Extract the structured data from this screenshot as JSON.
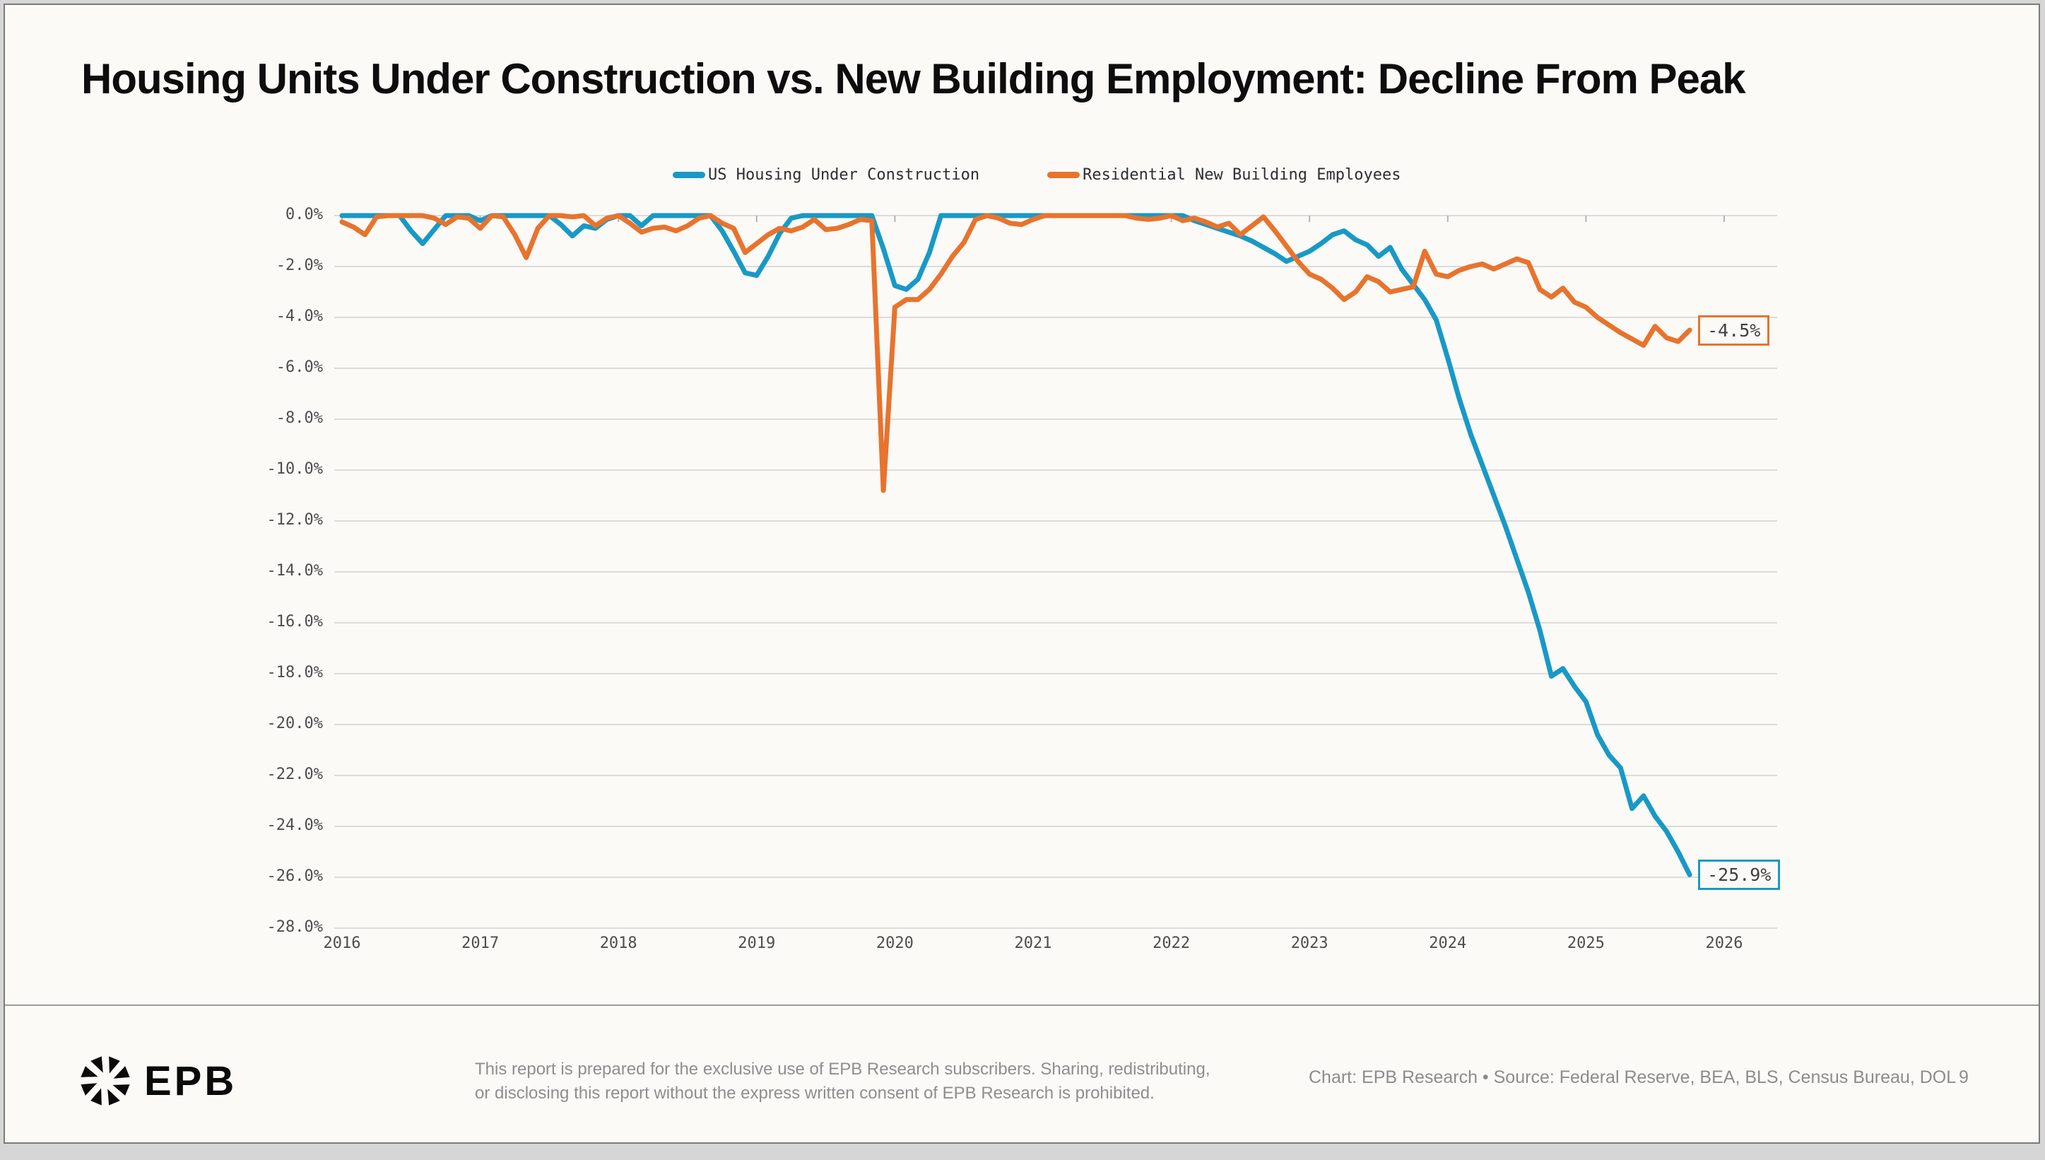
{
  "page": {
    "title": "Housing Units Under Construction vs. New Building Employment: Decline From Peak"
  },
  "colors": {
    "housing_line": "#1899c6",
    "employees_line": "#e8732d",
    "grid": "#dcdcda",
    "tick": "#b3b3b3",
    "card_bg": "#fbfaf7"
  },
  "legend": {
    "entries": [
      {
        "label": "US Housing Under Construction",
        "color": "#1899c6"
      },
      {
        "label": "Residential New Building Employees",
        "color": "#e8732d"
      }
    ]
  },
  "chart_data": {
    "type": "line",
    "title": "Housing Units Under Construction vs. New Building Employment: Decline From Peak",
    "xlabel": "",
    "ylabel": "",
    "xlim": [
      2016,
      2026
    ],
    "ylim": [
      -28,
      0
    ],
    "grid": true,
    "legend_position": "top-center",
    "x_ticks": [
      "2016",
      "2017",
      "2018",
      "2019",
      "2020",
      "2021",
      "2022",
      "2023",
      "2024",
      "2025",
      "2026"
    ],
    "y_ticks": [
      "0.0%",
      "-2.0%",
      "-4.0%",
      "-6.0%",
      "-8.0%",
      "-10.0%",
      "-12.0%",
      "-14.0%",
      "-16.0%",
      "-18.0%",
      "-20.0%",
      "-22.0%",
      "-24.0%",
      "-26.0%",
      "-28.0%"
    ],
    "frequency": "monthly",
    "start_year": 2016,
    "series": [
      {
        "name": "US Housing Under Construction",
        "color": "#1899c6",
        "end_label": "-25.9%",
        "values": [
          0,
          0,
          0,
          0,
          0,
          0,
          -0.6,
          -1.1,
          -0.55,
          0,
          0,
          0,
          -0.2,
          0,
          0,
          0,
          0,
          0,
          0,
          -0.35,
          -0.8,
          -0.4,
          -0.5,
          -0.15,
          0,
          0,
          -0.4,
          0,
          0,
          0,
          0,
          0,
          0,
          -0.6,
          -1.4,
          -2.25,
          -2.35,
          -1.6,
          -0.7,
          -0.1,
          0,
          0,
          0,
          0,
          0,
          0,
          0,
          -1.3,
          -2.75,
          -2.9,
          -2.5,
          -1.45,
          0,
          0,
          0,
          0,
          0,
          0,
          0,
          0,
          0,
          0,
          0,
          0,
          0,
          0,
          0,
          0,
          0,
          0,
          0,
          0,
          0,
          0,
          -0.2,
          -0.35,
          -0.5,
          -0.65,
          -0.8,
          -1.0,
          -1.25,
          -1.5,
          -1.8,
          -1.6,
          -1.4,
          -1.1,
          -0.75,
          -0.6,
          -0.95,
          -1.15,
          -1.6,
          -1.25,
          -2.1,
          -2.7,
          -3.3,
          -4.1,
          -5.6,
          -7.2,
          -8.6,
          -9.8,
          -11.0,
          -12.2,
          -13.5,
          -14.8,
          -16.3,
          -18.1,
          -17.8,
          -18.5,
          -19.1,
          -20.4,
          -21.2,
          -21.7,
          -23.3,
          -22.8,
          -23.6,
          -24.2,
          -25.0,
          -25.9
        ]
      },
      {
        "name": "Residential New Building Employees",
        "color": "#e8732d",
        "end_label": "-4.5%",
        "values": [
          -0.25,
          -0.45,
          -0.75,
          -0.05,
          0,
          0,
          0,
          0,
          -0.1,
          -0.35,
          -0.05,
          -0.1,
          -0.5,
          0,
          -0.05,
          -0.75,
          -1.65,
          -0.5,
          0,
          0,
          -0.05,
          0,
          -0.4,
          -0.1,
          0,
          -0.3,
          -0.65,
          -0.5,
          -0.45,
          -0.6,
          -0.4,
          -0.1,
          0,
          -0.3,
          -0.5,
          -1.45,
          -1.1,
          -0.75,
          -0.5,
          -0.6,
          -0.45,
          -0.15,
          -0.55,
          -0.5,
          -0.35,
          -0.15,
          -0.2,
          -10.8,
          -3.6,
          -3.3,
          -3.3,
          -2.9,
          -2.3,
          -1.6,
          -1.05,
          -0.15,
          0,
          -0.1,
          -0.3,
          -0.35,
          -0.15,
          0,
          0,
          0,
          0,
          0,
          0,
          0,
          0,
          -0.1,
          -0.15,
          -0.1,
          0,
          -0.2,
          -0.1,
          -0.25,
          -0.45,
          -0.3,
          -0.75,
          -0.4,
          -0.05,
          -0.6,
          -1.2,
          -1.8,
          -2.3,
          -2.5,
          -2.85,
          -3.3,
          -3.0,
          -2.4,
          -2.6,
          -3.0,
          -2.9,
          -2.8,
          -1.4,
          -2.3,
          -2.4,
          -2.15,
          -2.0,
          -1.9,
          -2.1,
          -1.9,
          -1.7,
          -1.85,
          -2.9,
          -3.2,
          -2.85,
          -3.4,
          -3.6,
          -4.0,
          -4.3,
          -4.6,
          -4.85,
          -5.1,
          -4.35,
          -4.8,
          -4.95,
          -4.5
        ]
      }
    ],
    "annotations": [
      "-25.9%",
      "-4.5%"
    ]
  },
  "footer": {
    "brand": "EPB",
    "disclaimer_line1": "This report is prepared for the exclusive use of EPB Research subscribers. Sharing, redistributing,",
    "disclaimer_line2": "or disclosing this report without the express written consent of EPB Research is prohibited.",
    "credit_chart": "Chart: EPB Research",
    "credit_separator": "•",
    "credit_source": "Source: Federal Reserve, BEA, BLS, Census Bureau, DOL",
    "page_number": "9"
  }
}
